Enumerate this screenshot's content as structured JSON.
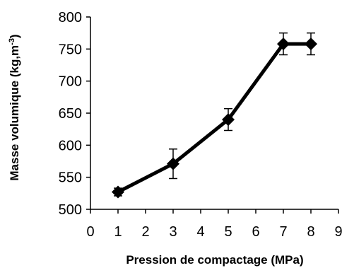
{
  "chart_data": {
    "type": "line",
    "title": "",
    "xlabel": "Pression de compactage  (MPa)",
    "ylabel_main": "Masse volumique (kg,m",
    "ylabel_sup": "-3",
    "ylabel_end": ")",
    "xlim": [
      0,
      9
    ],
    "ylim": [
      500,
      800
    ],
    "xticks": [
      0,
      1,
      2,
      3,
      4,
      5,
      6,
      7,
      8,
      9
    ],
    "yticks": [
      500,
      550,
      600,
      650,
      700,
      750,
      800
    ],
    "grid": false,
    "legend": "none",
    "series": [
      {
        "x": [
          1,
          3,
          5,
          7,
          8
        ],
        "y": [
          527,
          571,
          640,
          758,
          758
        ],
        "error": [
          6,
          23,
          17,
          17,
          17
        ],
        "marker": "diamond",
        "color": "#000000"
      }
    ]
  }
}
